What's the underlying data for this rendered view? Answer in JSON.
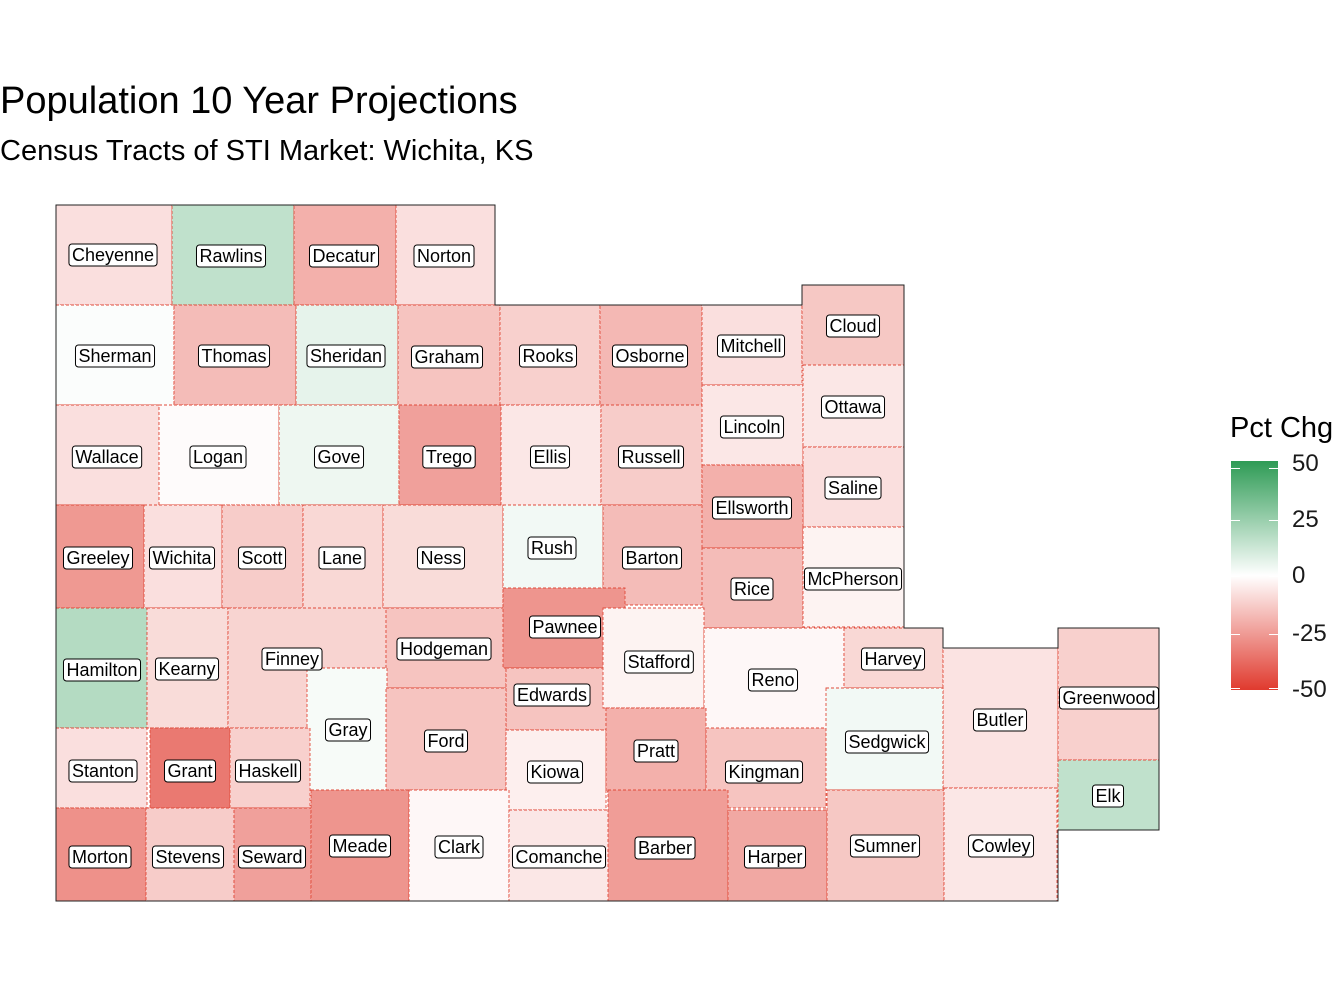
{
  "title": "Population 10 Year Projections",
  "subtitle": "Census Tracts of STI Market: Wichita, KS",
  "legend": {
    "title": "Pct Chg",
    "labels": [
      "50",
      "25",
      "0",
      "-25",
      "-50"
    ],
    "range": [
      -50,
      50
    ],
    "colors": {
      "high": "#2e9b55",
      "mid": "#ffffff",
      "low": "#e03a2e"
    }
  },
  "counties": [
    {
      "name": "Cheyenne",
      "value": -8
    },
    {
      "name": "Rawlins",
      "value": 15
    },
    {
      "name": "Decatur",
      "value": -20
    },
    {
      "name": "Norton",
      "value": -8
    },
    {
      "name": "Sherman",
      "value": 1
    },
    {
      "name": "Thomas",
      "value": -17
    },
    {
      "name": "Sheridan",
      "value": 6
    },
    {
      "name": "Graham",
      "value": -15
    },
    {
      "name": "Rooks",
      "value": -12
    },
    {
      "name": "Osborne",
      "value": -18
    },
    {
      "name": "Mitchell",
      "value": -8
    },
    {
      "name": "Cloud",
      "value": -14
    },
    {
      "name": "Wallace",
      "value": -8
    },
    {
      "name": "Logan",
      "value": -1
    },
    {
      "name": "Gove",
      "value": 4
    },
    {
      "name": "Trego",
      "value": -24
    },
    {
      "name": "Ellis",
      "value": -6
    },
    {
      "name": "Russell",
      "value": -13
    },
    {
      "name": "Lincoln",
      "value": -6
    },
    {
      "name": "Ottawa",
      "value": -6
    },
    {
      "name": "Saline",
      "value": -8
    },
    {
      "name": "Greeley",
      "value": -26
    },
    {
      "name": "Wichita",
      "value": -8
    },
    {
      "name": "Scott",
      "value": -13
    },
    {
      "name": "Lane",
      "value": -10
    },
    {
      "name": "Ness",
      "value": -9
    },
    {
      "name": "Rush",
      "value": 3
    },
    {
      "name": "Barton",
      "value": -17
    },
    {
      "name": "Ellsworth",
      "value": -20
    },
    {
      "name": "Rice",
      "value": -17
    },
    {
      "name": "McPherson",
      "value": -3
    },
    {
      "name": "Hamilton",
      "value": 18
    },
    {
      "name": "Kearny",
      "value": -9
    },
    {
      "name": "Finney",
      "value": -11
    },
    {
      "name": "Hodgeman",
      "value": -15
    },
    {
      "name": "Pawnee",
      "value": -27
    },
    {
      "name": "Edwards",
      "value": -15
    },
    {
      "name": "Stafford",
      "value": -3
    },
    {
      "name": "Reno",
      "value": -2
    },
    {
      "name": "Harvey",
      "value": -10
    },
    {
      "name": "Butler",
      "value": -7
    },
    {
      "name": "Greenwood",
      "value": -12
    },
    {
      "name": "Gray",
      "value": 2
    },
    {
      "name": "Ford",
      "value": -15
    },
    {
      "name": "Stanton",
      "value": -8
    },
    {
      "name": "Grant",
      "value": -34
    },
    {
      "name": "Haskell",
      "value": -12
    },
    {
      "name": "Kiowa",
      "value": -4
    },
    {
      "name": "Pratt",
      "value": -20
    },
    {
      "name": "Kingman",
      "value": -15
    },
    {
      "name": "Sedgwick",
      "value": 3
    },
    {
      "name": "Elk",
      "value": 15
    },
    {
      "name": "Morton",
      "value": -28
    },
    {
      "name": "Stevens",
      "value": -13
    },
    {
      "name": "Seward",
      "value": -24
    },
    {
      "name": "Meade",
      "value": -27
    },
    {
      "name": "Clark",
      "value": -2
    },
    {
      "name": "Comanche",
      "value": -6
    },
    {
      "name": "Barber",
      "value": -25
    },
    {
      "name": "Harper",
      "value": -22
    },
    {
      "name": "Sumner",
      "value": -14
    },
    {
      "name": "Cowley",
      "value": -6
    }
  ]
}
